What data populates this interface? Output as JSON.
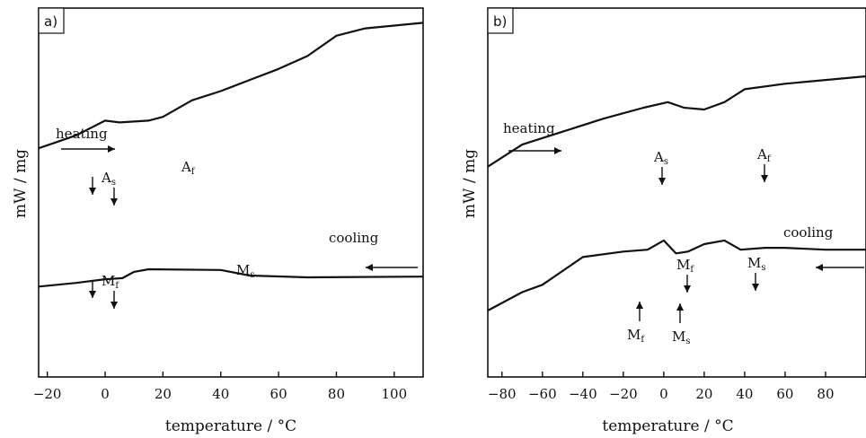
{
  "chart_data": [
    {
      "type": "line",
      "panel_label": "a)",
      "xlabel": "temperature / °C",
      "ylabel": "mW / mg",
      "xlim": [
        -23,
        110
      ],
      "xticks": [
        -20,
        0,
        20,
        40,
        60,
        80,
        100
      ],
      "y_ticks_shown": false,
      "grid": false,
      "series": [
        {
          "name": "heating",
          "points": [
            [
              -23,
              0.62
            ],
            [
              -10,
              0.655
            ],
            [
              0,
              0.695
            ],
            [
              5,
              0.69
            ],
            [
              15,
              0.695
            ],
            [
              20,
              0.705
            ],
            [
              30,
              0.75
            ],
            [
              40,
              0.775
            ],
            [
              50,
              0.805
            ],
            [
              60,
              0.835
            ],
            [
              70,
              0.87
            ],
            [
              80,
              0.925
            ],
            [
              90,
              0.945
            ],
            [
              110,
              0.96
            ]
          ]
        },
        {
          "name": "cooling",
          "points": [
            [
              -23,
              0.245
            ],
            [
              -10,
              0.255
            ],
            [
              0,
              0.265
            ],
            [
              6,
              0.268
            ],
            [
              10,
              0.285
            ],
            [
              15,
              0.292
            ],
            [
              40,
              0.29
            ],
            [
              50,
              0.275
            ],
            [
              70,
              0.27
            ],
            [
              110,
              0.272
            ]
          ]
        }
      ],
      "annotations": [
        {
          "text": "heating",
          "direction_arrow": "right"
        },
        {
          "text": "cooling",
          "direction_arrow": "left"
        },
        {
          "main": "A",
          "sub": "s",
          "x": 0
        },
        {
          "main": "A",
          "sub": "f",
          "x": 29
        },
        {
          "main": "M",
          "sub": "f",
          "x": 0
        },
        {
          "main": "M",
          "sub": "s",
          "x": 47
        }
      ]
    },
    {
      "type": "line",
      "panel_label": "b)",
      "xlabel": "temperature / °C",
      "ylabel": "mW / mg",
      "xlim": [
        -87,
        100
      ],
      "xticks": [
        -80,
        -60,
        -40,
        -20,
        0,
        20,
        40,
        60,
        80
      ],
      "y_ticks_shown": false,
      "grid": false,
      "series": [
        {
          "name": "heating",
          "points": [
            [
              -87,
              0.57
            ],
            [
              -70,
              0.63
            ],
            [
              -50,
              0.665
            ],
            [
              -30,
              0.7
            ],
            [
              -10,
              0.73
            ],
            [
              2,
              0.745
            ],
            [
              10,
              0.73
            ],
            [
              20,
              0.725
            ],
            [
              30,
              0.745
            ],
            [
              40,
              0.78
            ],
            [
              60,
              0.795
            ],
            [
              80,
              0.805
            ],
            [
              100,
              0.815
            ]
          ]
        },
        {
          "name": "cooling",
          "points": [
            [
              -87,
              0.18
            ],
            [
              -70,
              0.23
            ],
            [
              -60,
              0.25
            ],
            [
              -40,
              0.325
            ],
            [
              -20,
              0.34
            ],
            [
              -8,
              0.345
            ],
            [
              0,
              0.37
            ],
            [
              6,
              0.335
            ],
            [
              12,
              0.34
            ],
            [
              20,
              0.36
            ],
            [
              30,
              0.37
            ],
            [
              38,
              0.345
            ],
            [
              50,
              0.35
            ],
            [
              60,
              0.35
            ],
            [
              80,
              0.345
            ],
            [
              100,
              0.345
            ]
          ]
        }
      ],
      "annotations": [
        {
          "text": "heating",
          "direction_arrow": "right"
        },
        {
          "text": "cooling",
          "direction_arrow": "left"
        },
        {
          "main": "A",
          "sub": "s",
          "x": 0
        },
        {
          "main": "A",
          "sub": "f",
          "x": 47
        },
        {
          "main": "M",
          "sub": "f",
          "x": 12
        },
        {
          "main": "M",
          "sub": "s",
          "x": 44
        },
        {
          "main": "M",
          "sub": "f",
          "x": -11
        },
        {
          "main": "M",
          "sub": "s",
          "x": 8
        }
      ]
    }
  ]
}
